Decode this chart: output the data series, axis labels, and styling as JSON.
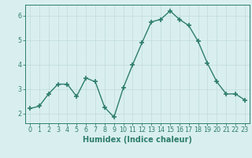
{
  "x": [
    0,
    1,
    2,
    3,
    4,
    5,
    6,
    7,
    8,
    9,
    10,
    11,
    12,
    13,
    14,
    15,
    16,
    17,
    18,
    19,
    20,
    21,
    22,
    23
  ],
  "y": [
    2.2,
    2.3,
    2.8,
    3.2,
    3.2,
    2.7,
    3.45,
    3.3,
    2.25,
    1.85,
    3.05,
    4.0,
    4.9,
    5.75,
    5.85,
    6.2,
    5.85,
    5.6,
    4.95,
    4.05,
    3.3,
    2.8,
    2.8,
    2.55
  ],
  "line_color": "#2e7d6e",
  "marker": "+",
  "marker_size": 4,
  "marker_linewidth": 1.2,
  "background_color": "#d9efef",
  "grid_color": "#c0dada",
  "xlabel": "Humidex (Indice chaleur)",
  "xlabel_fontsize": 7,
  "ylabel_ticks": [
    2,
    3,
    4,
    5,
    6
  ],
  "xtick_labels": [
    "0",
    "1",
    "2",
    "3",
    "4",
    "5",
    "6",
    "7",
    "8",
    "9",
    "10",
    "11",
    "12",
    "13",
    "14",
    "15",
    "16",
    "17",
    "18",
    "19",
    "20",
    "21",
    "22",
    "23"
  ],
  "xlim": [
    -0.5,
    23.5
  ],
  "ylim": [
    1.6,
    6.45
  ],
  "tick_fontsize": 5.8,
  "axis_color": "#2e7d6e",
  "spine_color": "#2e7d6e",
  "linewidth": 1.0
}
